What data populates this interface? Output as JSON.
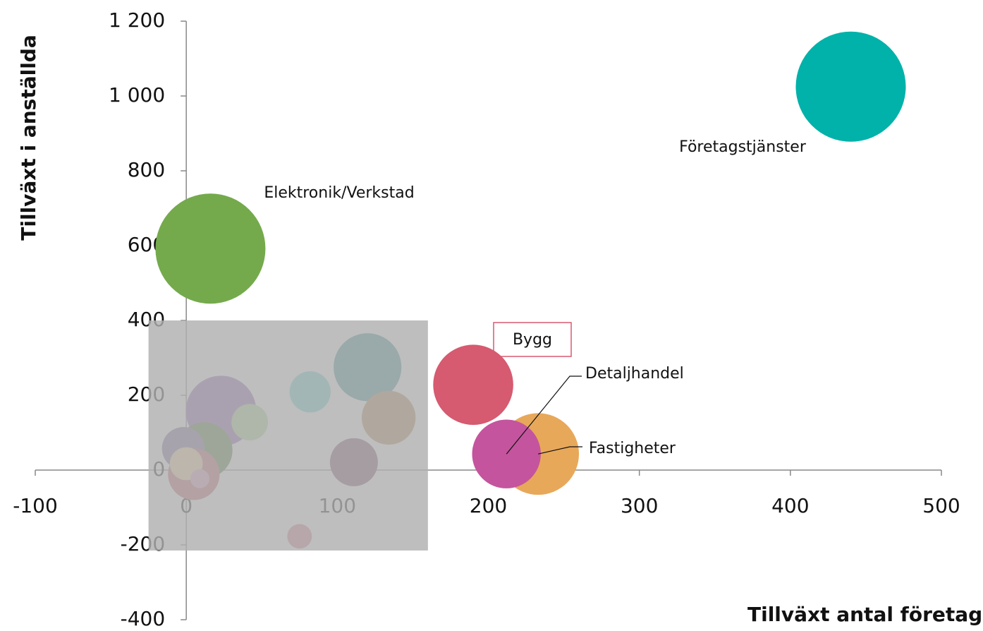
{
  "chart_data": {
    "type": "bubble",
    "x_label": "Tillväxt antal företag",
    "y_label": "Tillväxt i anställda",
    "xlim": [
      -100,
      500
    ],
    "xticks": [
      -100,
      0,
      100,
      200,
      300,
      400,
      500
    ],
    "ylim": [
      -400,
      1200
    ],
    "yticks": [
      -400,
      -200,
      0,
      200,
      400,
      600,
      800,
      {
        "value": 1000,
        "label": "1 000"
      },
      {
        "value": 1200,
        "label": "1 200"
      }
    ],
    "x": [
      440,
      16,
      190,
      233,
      212,
      120,
      134,
      82,
      23,
      42,
      111,
      12,
      -2,
      5,
      0,
      9,
      75
    ],
    "y": [
      1025,
      592,
      228,
      43,
      43,
      275,
      140,
      209,
      158,
      128,
      21,
      53,
      58,
      -11,
      17,
      -23,
      -177
    ],
    "sizes": [
      100,
      100,
      53,
      55,
      39,
      38,
      24,
      14,
      41,
      11,
      19,
      26,
      15,
      22,
      9,
      3,
      5
    ],
    "colors": [
      "#00b2a9",
      "#74aa4c",
      "#d65a70",
      "#e8a85a",
      "#c4549e",
      "#3a8a8c",
      "#b08450",
      "#6ad0d0",
      "#8e5fb0",
      "#a8d890",
      "#7a4a6a",
      "#4f7a3a",
      "#7a6a9a",
      "#c46070",
      "#f0d0a0",
      "#e0a0c0",
      "#d88090"
    ],
    "labels": [
      "Företagstjänster",
      "Elektronik/Verkstad",
      "Bygg",
      "Fastigheter",
      "Detaljhandel",
      null,
      null,
      null,
      null,
      null,
      null,
      null,
      null,
      null,
      null,
      null,
      null
    ],
    "highlight_region": {
      "xlim": [
        -25,
        160
      ],
      "ylim": [
        -215,
        400
      ],
      "color": "#b0b0b0"
    }
  }
}
